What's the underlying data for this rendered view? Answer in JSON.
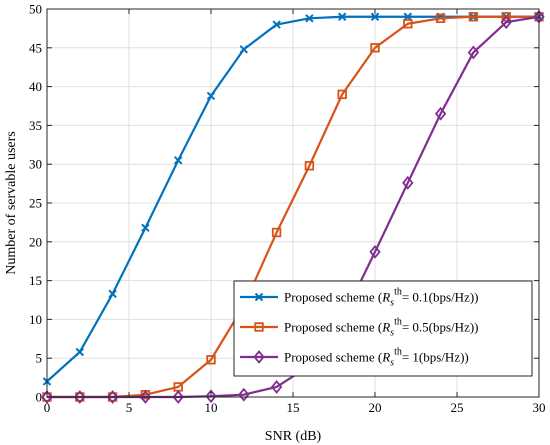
{
  "chart_data": {
    "type": "line",
    "title": "",
    "xlabel": "SNR (dB)",
    "ylabel": "Number of servable users",
    "xlim": [
      0,
      30
    ],
    "ylim": [
      0,
      50
    ],
    "xticks": [
      0,
      5,
      10,
      15,
      20,
      25,
      30
    ],
    "yticks": [
      0,
      5,
      10,
      15,
      20,
      25,
      30,
      35,
      40,
      45,
      50
    ],
    "grid": true,
    "legend_position": "bottom-right",
    "x": [
      0,
      2,
      4,
      6,
      8,
      10,
      12,
      14,
      16,
      18,
      20,
      22,
      24,
      26,
      28,
      30
    ],
    "series": [
      {
        "legend_prefix": "Proposed scheme (",
        "legend_symbol": "R",
        "legend_subscript": "s",
        "legend_superscript": "th",
        "legend_suffix": "= 0.1(bps/Hz))",
        "color": "#0072BD",
        "marker": "x",
        "values": [
          2.0,
          5.8,
          13.3,
          21.8,
          30.5,
          38.8,
          44.8,
          48.0,
          48.8,
          49.0,
          49.0,
          49.0,
          49.0,
          49.0,
          49.0,
          49.0
        ]
      },
      {
        "legend_prefix": "Proposed scheme (",
        "legend_symbol": "R",
        "legend_subscript": "s",
        "legend_superscript": "th",
        "legend_suffix": "= 0.5(bps/Hz))",
        "color": "#D95319",
        "marker": "square",
        "values": [
          0.0,
          0.0,
          0.0,
          0.3,
          1.3,
          4.8,
          11.8,
          21.2,
          29.8,
          39.0,
          45.0,
          48.1,
          48.8,
          49.0,
          49.0,
          49.0
        ]
      },
      {
        "legend_prefix": "Proposed scheme (",
        "legend_symbol": "R",
        "legend_subscript": "s",
        "legend_superscript": "th",
        "legend_suffix": "= 1(bps/Hz))",
        "color": "#7E2F8E",
        "marker": "diamond",
        "values": [
          0.0,
          0.0,
          0.0,
          0.0,
          0.0,
          0.1,
          0.3,
          1.3,
          4.0,
          10.0,
          18.7,
          27.6,
          36.5,
          44.4,
          48.3,
          49.0
        ]
      }
    ]
  }
}
